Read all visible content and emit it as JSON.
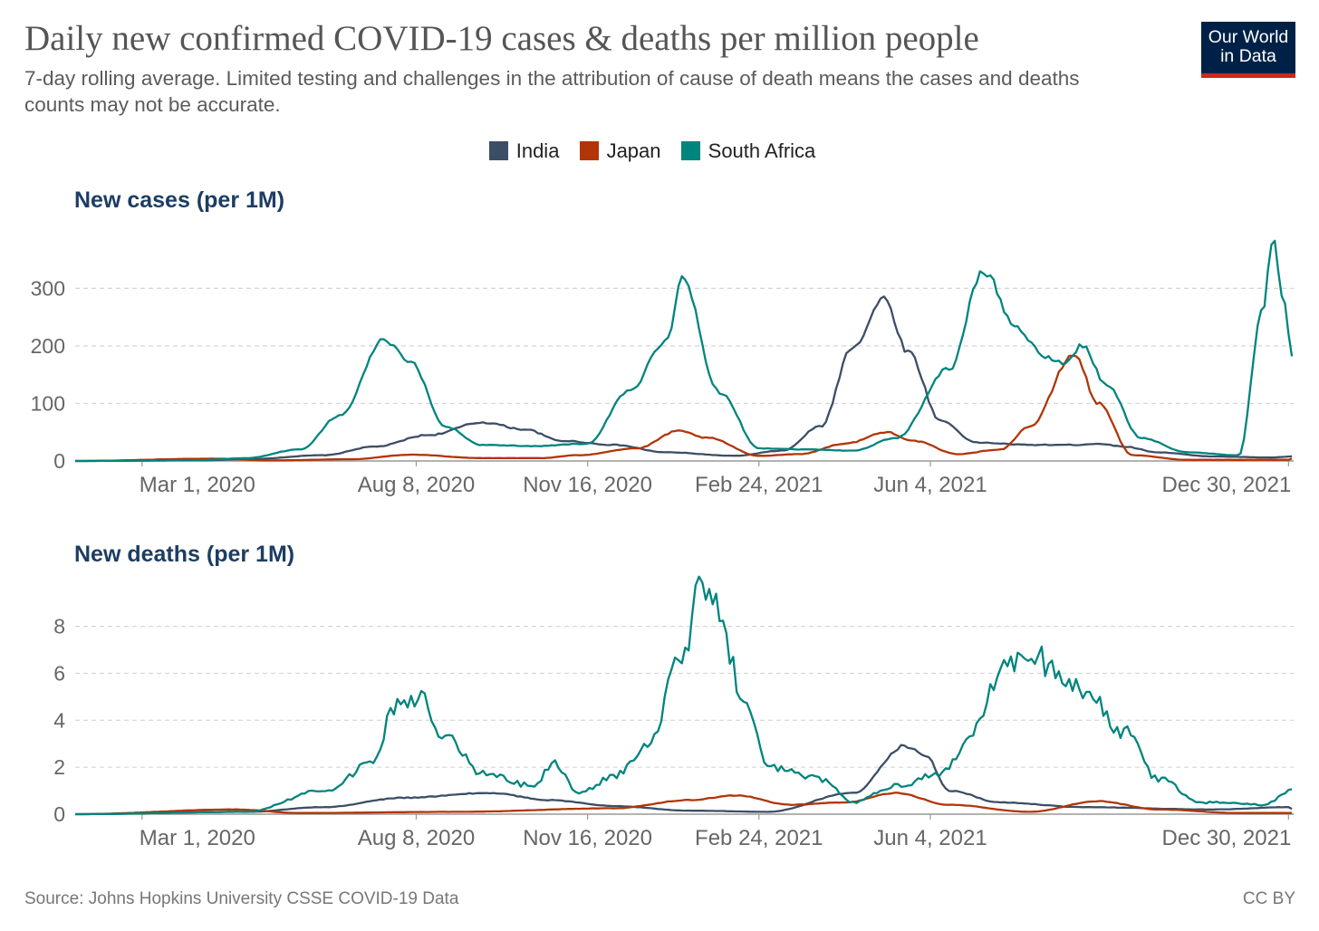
{
  "title": "Daily new confirmed COVID-19 cases & deaths per million people",
  "subtitle": "7-day rolling average. Limited testing and challenges in the attribution of cause of death means the cases and deaths counts may not be accurate.",
  "logo": {
    "line1": "Our World",
    "line2": "in Data"
  },
  "source": "Source: Johns Hopkins University CSSE COVID-19 Data",
  "license": "CC BY",
  "legend": [
    {
      "name": "India",
      "color": "#3c4e66"
    },
    {
      "name": "Japan",
      "color": "#b13507"
    },
    {
      "name": "South Africa",
      "color": "#00847e"
    }
  ],
  "chart_data": [
    {
      "type": "line",
      "title": "New cases (per 1M)",
      "x_domain": [
        "2020-01-22",
        "2022-01-02"
      ],
      "x_ticks": [
        "Mar 1, 2020",
        "Aug 8, 2020",
        "Nov 16, 2020",
        "Feb 24, 2021",
        "Jun 4, 2021",
        "Dec 30, 2021"
      ],
      "y_ticks": [
        0,
        100,
        200,
        300
      ],
      "ylim": [
        0,
        395
      ],
      "grid": true,
      "series": [
        {
          "name": "India",
          "color": "#3c4e66",
          "points": [
            [
              "2020-01-22",
              0
            ],
            [
              "2020-04-01",
              1
            ],
            [
              "2020-05-01",
              3
            ],
            [
              "2020-06-15",
              10
            ],
            [
              "2020-07-15",
              25
            ],
            [
              "2020-08-15",
              45
            ],
            [
              "2020-09-16",
              67
            ],
            [
              "2020-10-10",
              55
            ],
            [
              "2020-11-01",
              35
            ],
            [
              "2020-12-01",
              28
            ],
            [
              "2021-01-01",
              15
            ],
            [
              "2021-02-10",
              9
            ],
            [
              "2021-03-10",
              18
            ],
            [
              "2021-04-01",
              60
            ],
            [
              "2021-04-20",
              200
            ],
            [
              "2021-05-08",
              282
            ],
            [
              "2021-05-22",
              190
            ],
            [
              "2021-06-10",
              70
            ],
            [
              "2021-07-01",
              32
            ],
            [
              "2021-08-01",
              28
            ],
            [
              "2021-08-28",
              28
            ],
            [
              "2021-09-10",
              30
            ],
            [
              "2021-09-25",
              25
            ],
            [
              "2021-10-15",
              15
            ],
            [
              "2021-11-15",
              8
            ],
            [
              "2021-12-20",
              6
            ],
            [
              "2022-01-02",
              8
            ]
          ]
        },
        {
          "name": "Japan",
          "color": "#b13507",
          "points": [
            [
              "2020-01-22",
              0
            ],
            [
              "2020-04-12",
              4
            ],
            [
              "2020-05-15",
              1
            ],
            [
              "2020-07-01",
              3
            ],
            [
              "2020-08-05",
              11
            ],
            [
              "2020-09-15",
              5
            ],
            [
              "2020-10-20",
              5
            ],
            [
              "2020-11-10",
              10
            ],
            [
              "2020-12-15",
              22
            ],
            [
              "2021-01-08",
              52
            ],
            [
              "2021-01-25",
              40
            ],
            [
              "2021-02-24",
              9
            ],
            [
              "2021-03-20",
              12
            ],
            [
              "2021-04-15",
              30
            ],
            [
              "2021-05-10",
              50
            ],
            [
              "2021-05-25",
              35
            ],
            [
              "2021-06-20",
              12
            ],
            [
              "2021-07-15",
              20
            ],
            [
              "2021-08-01",
              60
            ],
            [
              "2021-08-27",
              185
            ],
            [
              "2021-09-10",
              100
            ],
            [
              "2021-09-30",
              10
            ],
            [
              "2021-11-01",
              2
            ],
            [
              "2021-12-30",
              2
            ],
            [
              "2022-01-02",
              5
            ]
          ]
        },
        {
          "name": "South Africa",
          "color": "#00847e",
          "points": [
            [
              "2020-01-22",
              0
            ],
            [
              "2020-04-01",
              1
            ],
            [
              "2020-05-01",
              5
            ],
            [
              "2020-06-01",
              20
            ],
            [
              "2020-06-25",
              80
            ],
            [
              "2020-07-20",
              210
            ],
            [
              "2020-08-05",
              170
            ],
            [
              "2020-08-25",
              60
            ],
            [
              "2020-09-15",
              28
            ],
            [
              "2020-10-15",
              26
            ],
            [
              "2020-11-16",
              30
            ],
            [
              "2020-12-10",
              120
            ],
            [
              "2021-01-01",
              210
            ],
            [
              "2021-01-10",
              315
            ],
            [
              "2021-02-01",
              120
            ],
            [
              "2021-02-24",
              22
            ],
            [
              "2021-03-25",
              20
            ],
            [
              "2021-04-20",
              18
            ],
            [
              "2021-05-15",
              40
            ],
            [
              "2021-06-15",
              160
            ],
            [
              "2021-07-05",
              330
            ],
            [
              "2021-07-25",
              230
            ],
            [
              "2021-08-10",
              180
            ],
            [
              "2021-08-20",
              170
            ],
            [
              "2021-09-01",
              200
            ],
            [
              "2021-09-15",
              130
            ],
            [
              "2021-10-05",
              40
            ],
            [
              "2021-11-01",
              15
            ],
            [
              "2021-12-01",
              10
            ],
            [
              "2021-12-15",
              260
            ],
            [
              "2021-12-21",
              390
            ],
            [
              "2021-12-26",
              290
            ],
            [
              "2022-01-02",
              175
            ]
          ]
        }
      ]
    },
    {
      "type": "line",
      "title": "New deaths (per 1M)",
      "x_domain": [
        "2020-01-22",
        "2022-01-02"
      ],
      "x_ticks": [
        "Mar 1, 2020",
        "Aug 8, 2020",
        "Nov 16, 2020",
        "Feb 24, 2021",
        "Jun 4, 2021",
        "Dec 30, 2021"
      ],
      "y_ticks": [
        0,
        2,
        4,
        6,
        8
      ],
      "ylim": [
        0,
        9.8
      ],
      "grid": true,
      "series": [
        {
          "name": "India",
          "color": "#3c4e66",
          "points": [
            [
              "2020-01-22",
              0
            ],
            [
              "2020-05-01",
              0.1
            ],
            [
              "2020-06-15",
              0.3
            ],
            [
              "2020-08-01",
              0.7
            ],
            [
              "2020-09-20",
              0.9
            ],
            [
              "2020-10-25",
              0.6
            ],
            [
              "2020-12-01",
              0.35
            ],
            [
              "2021-01-15",
              0.15
            ],
            [
              "2021-03-01",
              0.1
            ],
            [
              "2021-04-20",
              0.9
            ],
            [
              "2021-05-20",
              2.9
            ],
            [
              "2021-06-01",
              2.5
            ],
            [
              "2021-06-15",
              1.0
            ],
            [
              "2021-07-15",
              0.5
            ],
            [
              "2021-09-01",
              0.3
            ],
            [
              "2021-11-15",
              0.2
            ],
            [
              "2021-12-30",
              0.3
            ],
            [
              "2022-01-02",
              0.2
            ]
          ]
        },
        {
          "name": "Japan",
          "color": "#b13507",
          "points": [
            [
              "2020-01-22",
              0
            ],
            [
              "2020-04-25",
              0.2
            ],
            [
              "2020-06-01",
              0.05
            ],
            [
              "2020-09-01",
              0.1
            ],
            [
              "2020-12-01",
              0.25
            ],
            [
              "2021-01-15",
              0.6
            ],
            [
              "2021-02-10",
              0.8
            ],
            [
              "2021-03-15",
              0.4
            ],
            [
              "2021-04-15",
              0.5
            ],
            [
              "2021-05-15",
              0.9
            ],
            [
              "2021-06-15",
              0.4
            ],
            [
              "2021-08-01",
              0.1
            ],
            [
              "2021-09-10",
              0.55
            ],
            [
              "2021-10-15",
              0.2
            ],
            [
              "2021-12-01",
              0.05
            ],
            [
              "2022-01-02",
              0.05
            ]
          ]
        },
        {
          "name": "South Africa",
          "color": "#00847e",
          "points": [
            [
              "2020-01-22",
              0
            ],
            [
              "2020-05-01",
              0.1
            ],
            [
              "2020-06-15",
              1.0
            ],
            [
              "2020-07-15",
              2.2
            ],
            [
              "2020-07-25",
              4.5
            ],
            [
              "2020-08-10",
              4.9
            ],
            [
              "2020-08-25",
              3.2
            ],
            [
              "2020-09-15",
              1.8
            ],
            [
              "2020-10-15",
              1.2
            ],
            [
              "2020-10-28",
              2.2
            ],
            [
              "2020-11-10",
              0.9
            ],
            [
              "2020-12-01",
              1.6
            ],
            [
              "2020-12-20",
              2.8
            ],
            [
              "2021-01-10",
              6.5
            ],
            [
              "2021-01-20",
              9.5
            ],
            [
              "2021-01-30",
              8.8
            ],
            [
              "2021-02-15",
              5.0
            ],
            [
              "2021-03-01",
              2.0
            ],
            [
              "2021-04-01",
              1.5
            ],
            [
              "2021-04-20",
              0.5
            ],
            [
              "2021-05-15",
              1.2
            ],
            [
              "2021-06-10",
              1.7
            ],
            [
              "2021-06-25",
              3.0
            ],
            [
              "2021-07-15",
              6.0
            ],
            [
              "2021-08-01",
              6.8
            ],
            [
              "2021-08-20",
              6.0
            ],
            [
              "2021-09-05",
              5.0
            ],
            [
              "2021-09-25",
              3.5
            ],
            [
              "2021-10-15",
              1.5
            ],
            [
              "2021-11-10",
              0.5
            ],
            [
              "2021-12-15",
              0.4
            ],
            [
              "2022-01-02",
              1.0
            ]
          ]
        }
      ]
    }
  ]
}
